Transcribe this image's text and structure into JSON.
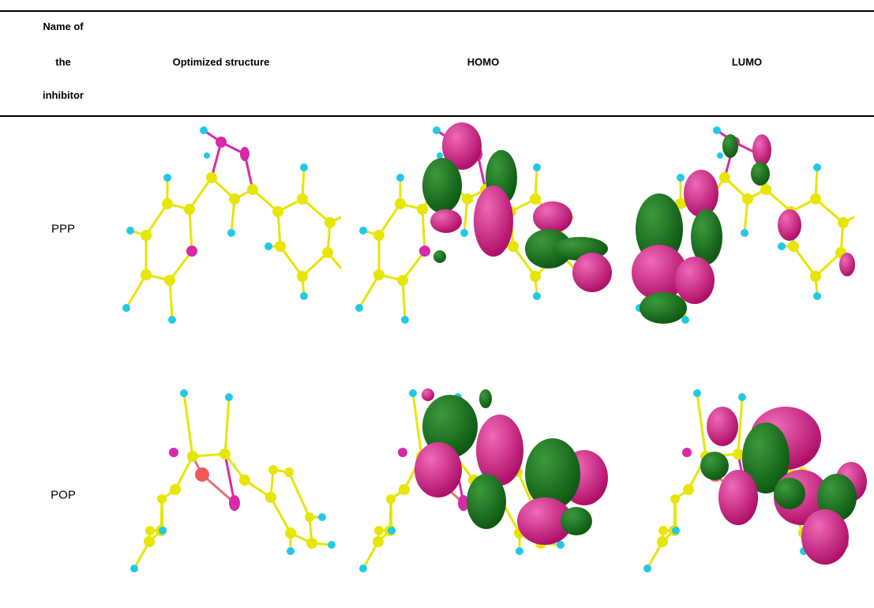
{
  "header": {
    "columns": [
      [
        "Name of",
        "the",
        "inhibitor"
      ],
      "Optimized structure",
      "HOMO",
      "LUMO"
    ]
  },
  "rows": [
    {
      "name": "PPP"
    },
    {
      "name": "POP"
    }
  ]
}
